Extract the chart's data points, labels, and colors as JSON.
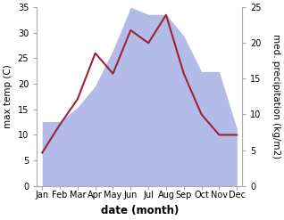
{
  "months": [
    "Jan",
    "Feb",
    "Mar",
    "Apr",
    "May",
    "Jun",
    "Jul",
    "Aug",
    "Sep",
    "Oct",
    "Nov",
    "Dec"
  ],
  "temperature": [
    6.5,
    12.0,
    17.0,
    26.0,
    22.0,
    30.5,
    28.0,
    33.5,
    22.0,
    14.0,
    10.0,
    10.0
  ],
  "precipitation": [
    9,
    9,
    11,
    14,
    19,
    25,
    24,
    24,
    21,
    16,
    16,
    8
  ],
  "temp_color": "#9B2335",
  "precip_color": "#b3bce8",
  "background_color": "#ffffff",
  "temp_ylim": [
    0,
    35
  ],
  "precip_ylim": [
    0,
    25
  ],
  "temp_yticks": [
    0,
    5,
    10,
    15,
    20,
    25,
    30,
    35
  ],
  "precip_yticks": [
    0,
    5,
    10,
    15,
    20,
    25
  ],
  "ylabel_left": "max temp (C)",
  "ylabel_right": "med. precipitation (kg/m2)",
  "xlabel": "date (month)",
  "line_width": 1.5,
  "tick_fontsize": 7,
  "ylabel_fontsize": 7.5,
  "xlabel_fontsize": 8.5
}
